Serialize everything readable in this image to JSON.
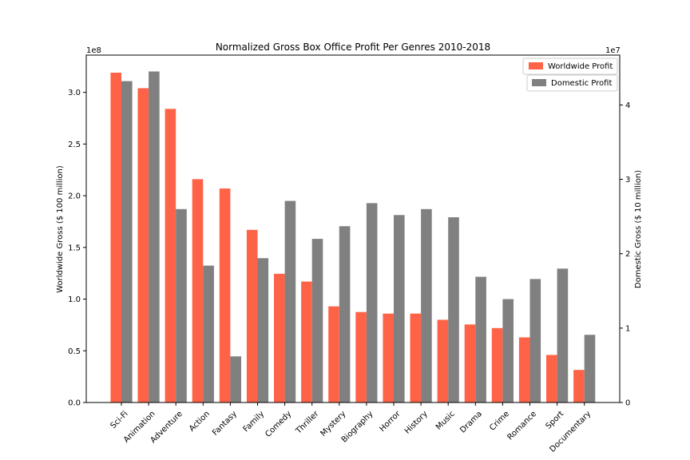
{
  "chart_data": {
    "type": "bar",
    "title": "Normalized Gross Box Office Profit Per Genres 2010-2018",
    "categories": [
      "Sci-Fi",
      "Animation",
      "Adventure",
      "Action",
      "Fantasy",
      "Family",
      "Comedy",
      "Thriller",
      "Mystery",
      "Biography",
      "Horror",
      "History",
      "Music",
      "Drama",
      "Crime",
      "Romance",
      "Sport",
      "Documentary"
    ],
    "series": [
      {
        "name": "Worldwide Profit",
        "axis": "left",
        "color": "#ff6347",
        "values": [
          319000000.0,
          304000000.0,
          284000000.0,
          216000000.0,
          207000000.0,
          167000000.0,
          124500000.0,
          117000000.0,
          93000000.0,
          87500000.0,
          86000000.0,
          86000000.0,
          80000000.0,
          75500000.0,
          72000000.0,
          63000000.0,
          46000000.0,
          31500000.0
        ]
      },
      {
        "name": "Domestic Profit",
        "axis": "right",
        "color": "#808080",
        "values": [
          43200000.0,
          44500000.0,
          26000000.0,
          18400000.0,
          6200000.0,
          19400000.0,
          27100000.0,
          22000000.0,
          23700000.0,
          26800000.0,
          25200000.0,
          26000000.0,
          24900000.0,
          16900000.0,
          13900000.0,
          16600000.0,
          18000000.0,
          9100000.0
        ]
      }
    ],
    "ylabel": "Worldwide Gross ($ 100 million)",
    "y2label": "Domestic Gross ($ 10 million)",
    "ylim": [
      0,
      336000000.0
    ],
    "y2lim": [
      0,
      46700000.0
    ],
    "yticks": [
      0,
      50000000.0,
      100000000.0,
      150000000.0,
      200000000.0,
      250000000.0,
      300000000.0
    ],
    "yticklabels": [
      "0.0",
      "0.5",
      "1.0",
      "1.5",
      "2.0",
      "2.5",
      "3.0"
    ],
    "y2ticks": [
      0,
      10000000.0,
      20000000.0,
      30000000.0,
      40000000.0
    ],
    "y2ticklabels": [
      "0",
      "1",
      "2",
      "3",
      "4"
    ],
    "y_offset_text": "1e8",
    "y2_offset_text": "1e7",
    "grid": false,
    "legend_placement": "top-right"
  }
}
